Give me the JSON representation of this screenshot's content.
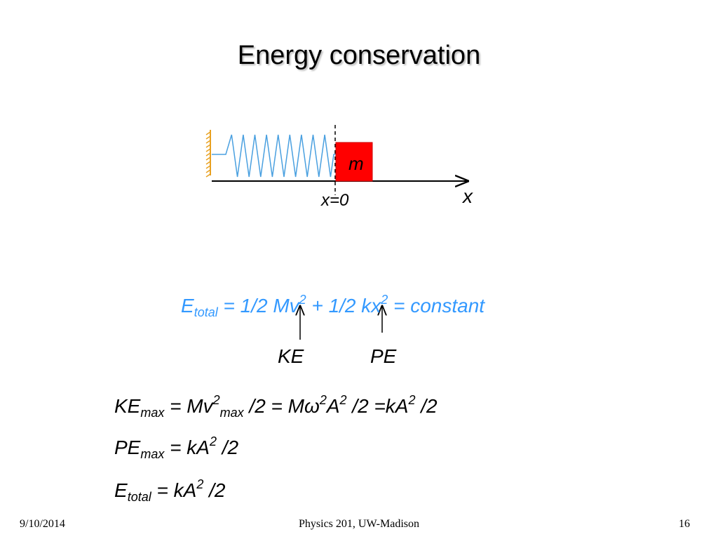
{
  "title": "Energy conservation",
  "diagram": {
    "mass_label": "m",
    "axis_label": "x",
    "origin_label": "x=0"
  },
  "equation": [
    "E",
    "total",
    " = 1/2 Mv",
    "2",
    " + 1/2 kx",
    "2",
    " = constant"
  ],
  "arrow_labels": [
    "KE",
    "PE"
  ],
  "formulas": [
    [
      "KE",
      "max",
      " = Mv",
      "2",
      "max",
      " /2 = Mω",
      "2",
      "A",
      "2",
      " /2 =kA",
      "2",
      " /2"
    ],
    [
      "PE",
      "max",
      " = kA",
      "2",
      " /2"
    ],
    [
      "E",
      "total",
      " = kA",
      "2",
      " /2"
    ]
  ],
  "footer": {
    "date": "9/10/2014",
    "course": "Physics 201, UW-Madison",
    "page": "16"
  }
}
